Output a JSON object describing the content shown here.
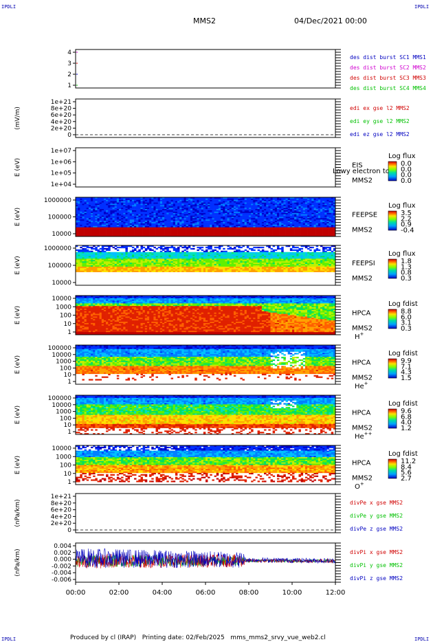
{
  "corners": {
    "tl": "IPDLI",
    "tr": "IPDLI",
    "bl": "IPDLI",
    "br": "IPDLI"
  },
  "header": {
    "spacecraft": "MMS2",
    "date": "04/Dec/2021 00:00"
  },
  "footer": {
    "text": "Produced by cl (IRAP)   Printing date: 02/Feb/2025   mms_mms2_srvy_vue_web2.cl"
  },
  "colors": {
    "red": "#d00000",
    "magenta": "#d000d0",
    "green": "#00c000",
    "blue": "#0000c0"
  },
  "chart_data": {
    "type": "heatmap",
    "x_ticks": [
      "00:00",
      "02:00",
      "04:00",
      "06:00",
      "08:00",
      "10:00",
      "12:00"
    ],
    "panels": [
      {
        "id": "burst",
        "type": "line",
        "yticks": [
          "4",
          "3",
          "2",
          "1"
        ],
        "ylabel": "",
        "legend": [
          {
            "text": "des dist burst SC1 MMS1",
            "color": "blue"
          },
          {
            "text": "des dist burst SC2 MMS2",
            "color": "magenta"
          },
          {
            "text": "des dist burst SC3 MMS3",
            "color": "red"
          },
          {
            "text": "des dist burst SC4 MMS4",
            "color": "green"
          }
        ]
      },
      {
        "id": "edi",
        "type": "line",
        "yticks": [
          "1e+21",
          "8e+20",
          "6e+20",
          "4e+20",
          "2e+20",
          "0"
        ],
        "ylabel": "(mV/m)",
        "legend": [
          {
            "text": "edi ex gse l2 MMS2",
            "color": "red"
          },
          {
            "text": "edi ey gse l2 MMS2",
            "color": "green"
          },
          {
            "text": "edi ez gse l2 MMS2",
            "color": "blue"
          }
        ]
      },
      {
        "id": "eis",
        "type": "heatmap",
        "yticks": [
          "1e+07",
          "1e+06",
          "1e+05",
          "1e+04"
        ],
        "ylabel": "E (eV)",
        "instrument": "EIS",
        "species": "",
        "note": "Lowy electron to",
        "sc": "MMS2",
        "cbar": {
          "title": "Log flux",
          "ticks": [
            "0.0",
            "0.0",
            "0.0",
            "0.0"
          ]
        }
      },
      {
        "id": "feepse",
        "type": "heatmap",
        "yticks": [
          "1000000",
          "100000",
          "10000"
        ],
        "ylabel": "E (eV)",
        "instrument": "FEEPSE",
        "species": "",
        "sc": "MMS2",
        "cbar": {
          "title": "Log flux",
          "ticks": [
            "3.5",
            "2.2",
            "0.9",
            "-0.4"
          ]
        }
      },
      {
        "id": "feepsi",
        "type": "heatmap",
        "yticks": [
          "1000000",
          "100000",
          "10000"
        ],
        "ylabel": "E (eV)",
        "instrument": "FEEPSI",
        "species": "",
        "sc": "MMS2",
        "cbar": {
          "title": "Log flux",
          "ticks": [
            "1.8",
            "1.3",
            "0.8",
            "0.3"
          ]
        }
      },
      {
        "id": "hpca_h",
        "type": "heatmap",
        "yticks": [
          "10000",
          "1000",
          "100",
          "10",
          "1"
        ],
        "ylabel": "E (eV)",
        "instrument": "HPCA",
        "species": "H",
        "charge": "+",
        "sc": "MMS2",
        "cbar": {
          "title": "Log fdist",
          "ticks": [
            "8.8",
            "6.0",
            "3.1",
            "0.3"
          ]
        }
      },
      {
        "id": "hpca_he",
        "type": "heatmap",
        "yticks": [
          "100000",
          "10000",
          "1000",
          "100",
          "10",
          "1"
        ],
        "ylabel": "E (eV)",
        "instrument": "HPCA",
        "species": "He",
        "charge": "+",
        "sc": "MMS2",
        "cbar": {
          "title": "Log fdist",
          "ticks": [
            "9.9",
            "7.1",
            "4.3",
            "1.5"
          ]
        }
      },
      {
        "id": "hpca_hepp",
        "type": "heatmap",
        "yticks": [
          "100000",
          "10000",
          "1000",
          "100",
          "10",
          "1"
        ],
        "ylabel": "E (eV)",
        "instrument": "HPCA",
        "species": "He",
        "charge": "++",
        "sc": "MMS2",
        "cbar": {
          "title": "Log fdist",
          "ticks": [
            "9.6",
            "6.8",
            "4.0",
            "1.2"
          ]
        }
      },
      {
        "id": "hpca_o",
        "type": "heatmap",
        "yticks": [
          "10000",
          "1000",
          "100",
          "10",
          "1"
        ],
        "ylabel": "E (eV)",
        "instrument": "HPCA",
        "species": "O",
        "charge": "+",
        "sc": "MMS2",
        "cbar": {
          "title": "Log fdist",
          "ticks": [
            "11.2",
            "8.4",
            "5.6",
            "2.7"
          ]
        }
      },
      {
        "id": "divpe",
        "type": "line",
        "yticks": [
          "1e+21",
          "8e+20",
          "6e+20",
          "4e+20",
          "2e+20",
          "0"
        ],
        "ylabel": "(nPa/km)",
        "legend": [
          {
            "text": "divPe x gse MMS2",
            "color": "red"
          },
          {
            "text": "divPe y gse MMS2",
            "color": "green"
          },
          {
            "text": "divPe z gse MMS2",
            "color": "blue"
          }
        ]
      },
      {
        "id": "divpi",
        "type": "line",
        "yticks": [
          "0.004",
          "0.002",
          "0.000",
          "-0.002",
          "-0.004",
          "-0.006"
        ],
        "ylabel": "(nPa/km)",
        "ylim": [
          -0.006,
          0.005
        ],
        "legend": [
          {
            "text": "divPi x gse MMS2",
            "color": "red"
          },
          {
            "text": "divPi y gse MMS2",
            "color": "green"
          },
          {
            "text": "divPi z gse MMS2",
            "color": "blue"
          }
        ]
      }
    ]
  }
}
